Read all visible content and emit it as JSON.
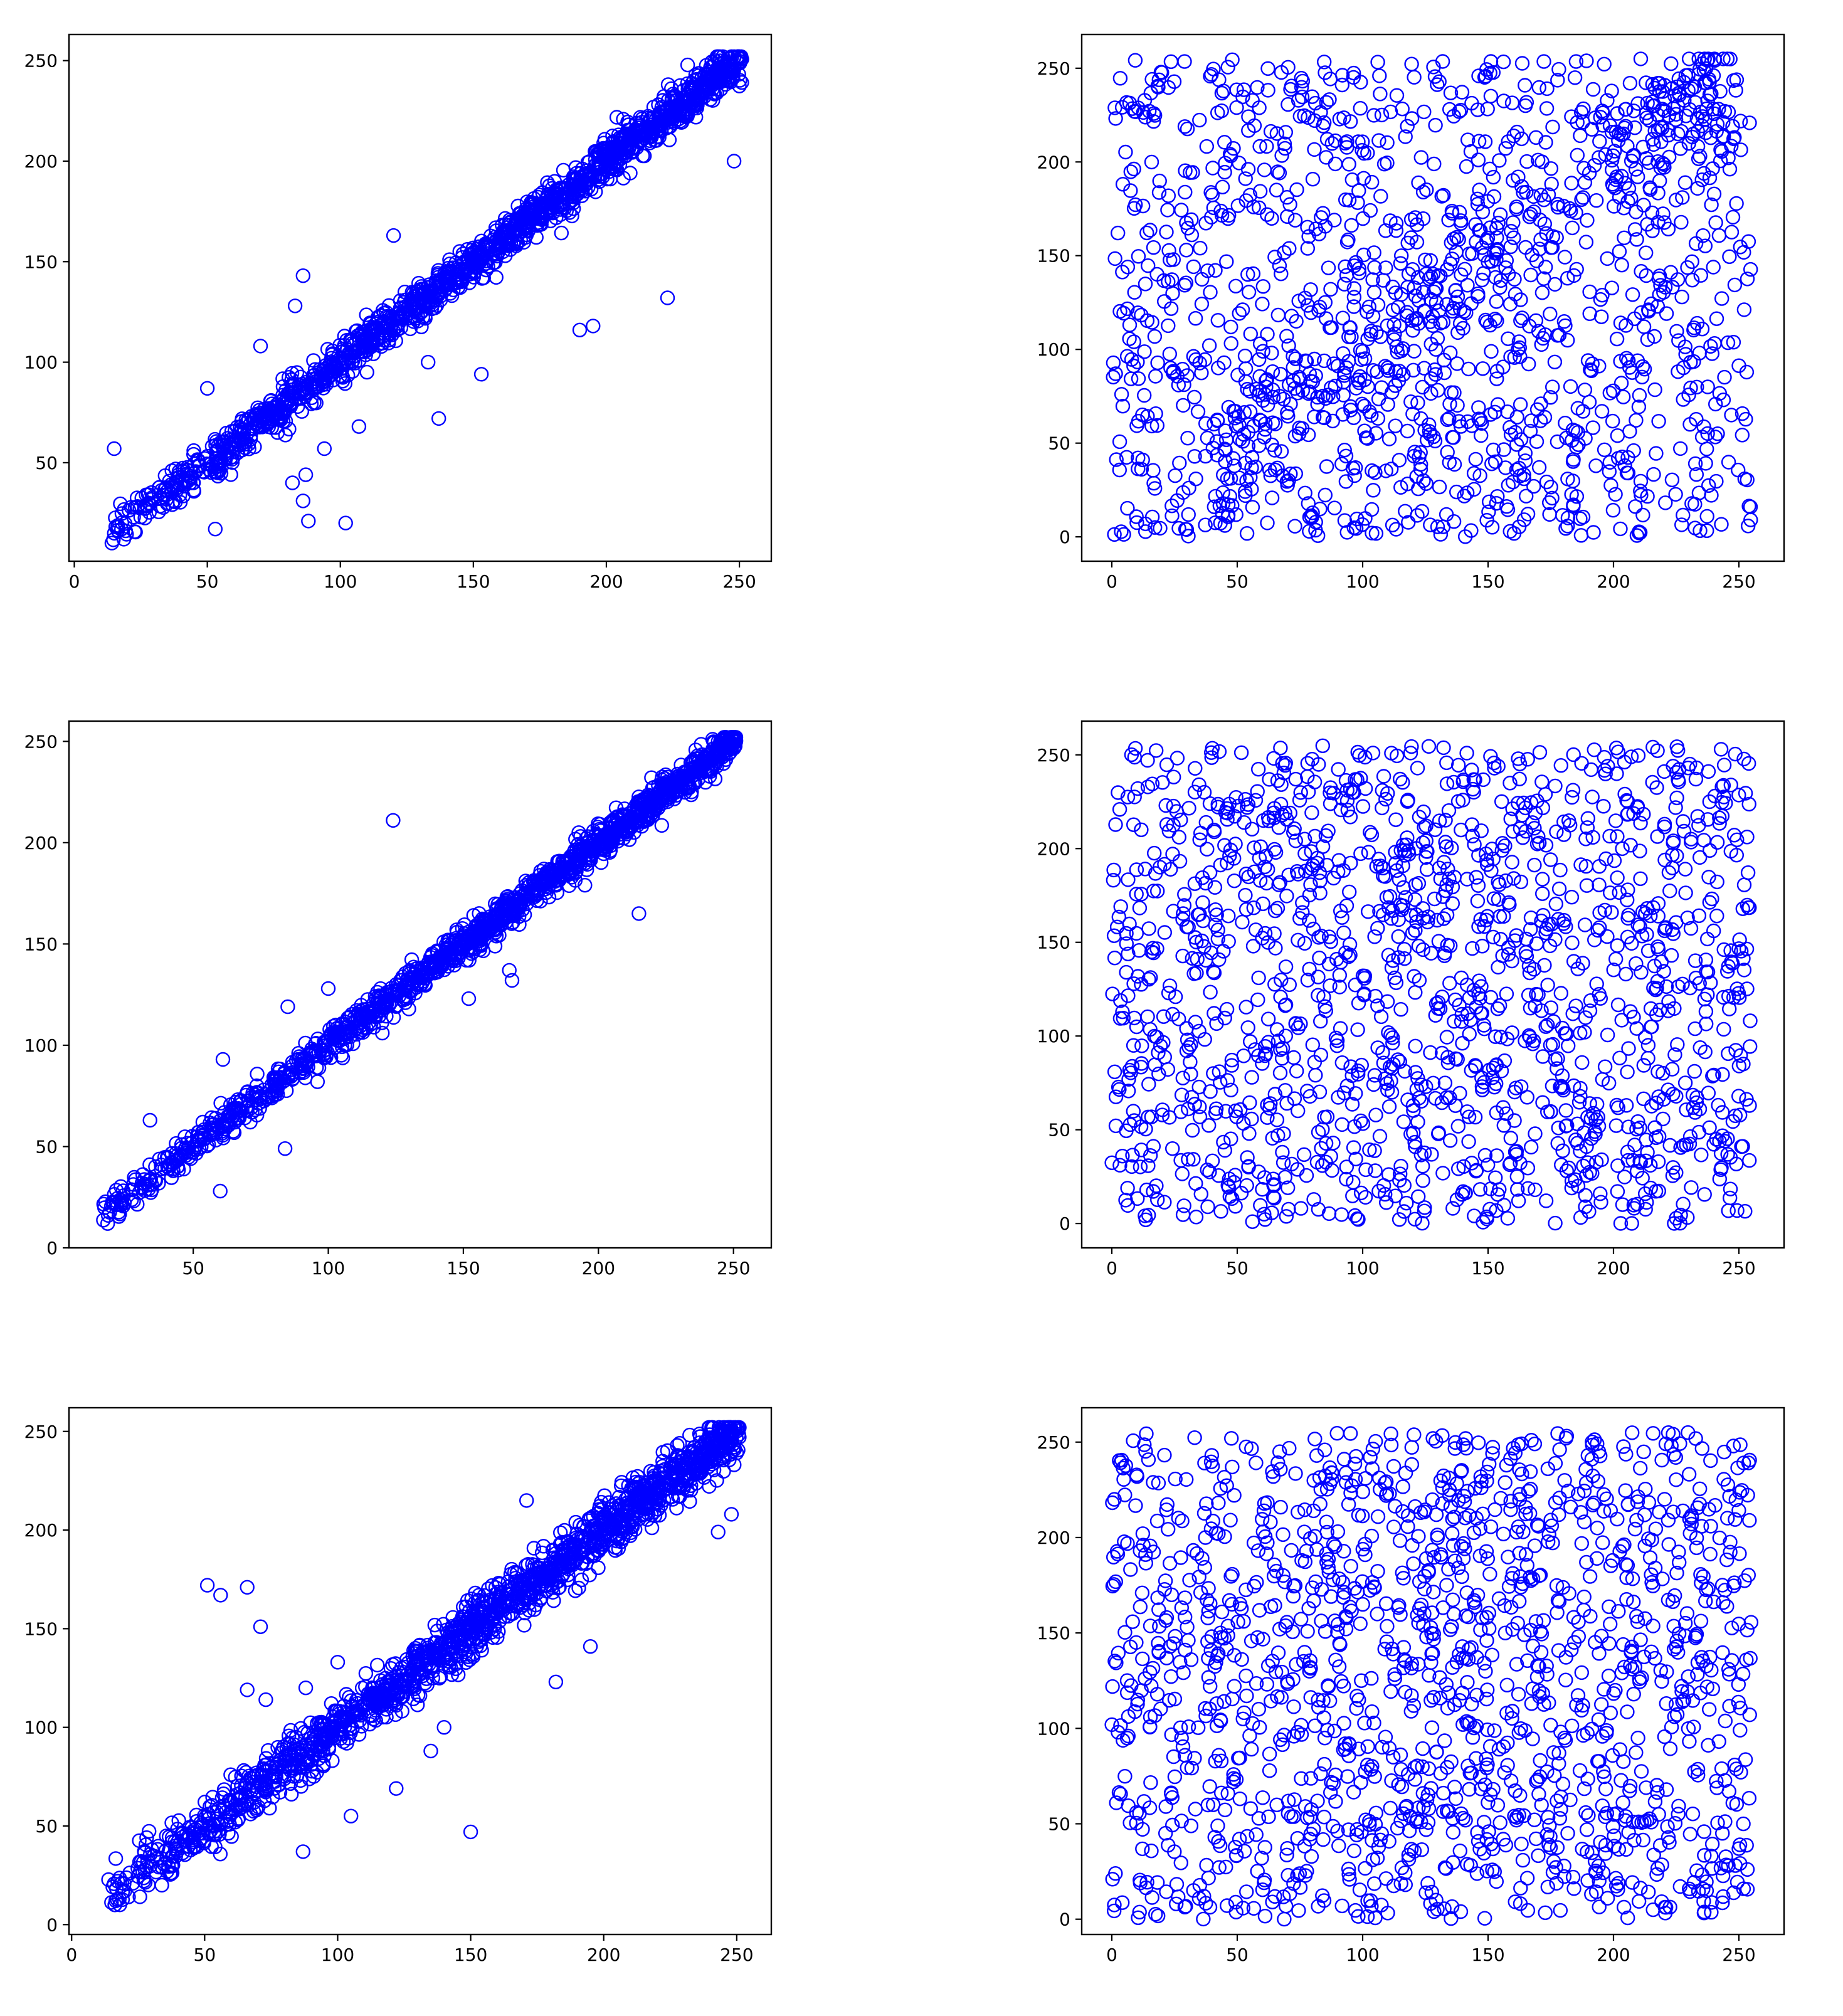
{
  "figure": {
    "layout": "3 rows x 2 columns grid of scatter plots",
    "marker": "hollow circle",
    "marker_color": "#0000ff",
    "background": "#ffffff"
  },
  "chart_data": [
    {
      "type": "scatter",
      "title": "",
      "xlabel": "",
      "ylabel": "",
      "xlim": [
        -2,
        262
      ],
      "ylim": [
        1,
        263
      ],
      "xticks": [
        0,
        50,
        100,
        150,
        200,
        250
      ],
      "yticks": [
        50,
        100,
        150,
        200,
        250
      ],
      "grid": false,
      "legend": "none",
      "series": [
        {
          "trend": "y ≈ x (strong positive correlation)",
          "x_range": [
            12,
            251
          ],
          "noise": 5,
          "n": 1500,
          "seed": 11,
          "points": [
            {
              "x": 15,
              "y": 57
            },
            {
              "x": 53,
              "y": 17
            },
            {
              "x": 86,
              "y": 143
            },
            {
              "x": 83,
              "y": 128
            },
            {
              "x": 94,
              "y": 57
            },
            {
              "x": 102,
              "y": 20
            },
            {
              "x": 88,
              "y": 21
            },
            {
              "x": 86,
              "y": 31
            },
            {
              "x": 82,
              "y": 40
            },
            {
              "x": 87,
              "y": 44
            },
            {
              "x": 107,
              "y": 68
            },
            {
              "x": 110,
              "y": 95
            },
            {
              "x": 133,
              "y": 100
            },
            {
              "x": 137,
              "y": 72
            },
            {
              "x": 120,
              "y": 163
            },
            {
              "x": 153,
              "y": 94
            },
            {
              "x": 190,
              "y": 116
            },
            {
              "x": 195,
              "y": 118
            },
            {
              "x": 223,
              "y": 132
            },
            {
              "x": 248,
              "y": 200
            },
            {
              "x": 230,
              "y": 222
            },
            {
              "x": 70,
              "y": 108
            },
            {
              "x": 50,
              "y": 87
            }
          ]
        }
      ]
    },
    {
      "type": "scatter",
      "title": "",
      "xlabel": "",
      "ylabel": "",
      "xlim": [
        -12,
        268
      ],
      "ylim": [
        -13,
        268
      ],
      "xticks": [
        0,
        50,
        100,
        150,
        200,
        250
      ],
      "yticks": [
        0,
        50,
        100,
        150,
        200,
        250
      ],
      "grid": false,
      "legend": "none",
      "series": [
        {
          "trend": "no correlation (uniform noise), faint diagonal band",
          "x_range": [
            0,
            255
          ],
          "n": 1500,
          "diagonal_fraction": 0.15,
          "seed": 23,
          "points": []
        }
      ]
    },
    {
      "type": "scatter",
      "title": "",
      "xlabel": "",
      "ylabel": "",
      "xlim": [
        4,
        264
      ],
      "ylim": [
        0,
        260
      ],
      "xticks": [
        50,
        100,
        150,
        200,
        250
      ],
      "yticks": [
        0,
        50,
        100,
        150,
        200,
        250
      ],
      "grid": false,
      "legend": "none",
      "series": [
        {
          "trend": "y ≈ x (strong positive correlation)",
          "x_range": [
            14,
            251
          ],
          "noise": 4,
          "n": 1400,
          "seed": 37,
          "points": [
            {
              "x": 124,
              "y": 211
            },
            {
              "x": 60,
              "y": 28
            },
            {
              "x": 84,
              "y": 49
            },
            {
              "x": 85,
              "y": 119
            },
            {
              "x": 167,
              "y": 137
            },
            {
              "x": 168,
              "y": 132
            },
            {
              "x": 152,
              "y": 123
            },
            {
              "x": 215,
              "y": 165
            },
            {
              "x": 195,
              "y": 179
            },
            {
              "x": 61,
              "y": 93
            },
            {
              "x": 96,
              "y": 82
            },
            {
              "x": 34,
              "y": 63
            },
            {
              "x": 100,
              "y": 128
            },
            {
              "x": 120,
              "y": 106
            }
          ]
        }
      ]
    },
    {
      "type": "scatter",
      "title": "",
      "xlabel": "",
      "ylabel": "",
      "xlim": [
        -12,
        268
      ],
      "ylim": [
        -13,
        268
      ],
      "xticks": [
        0,
        50,
        100,
        150,
        200,
        250
      ],
      "yticks": [
        0,
        50,
        100,
        150,
        200,
        250
      ],
      "grid": false,
      "legend": "none",
      "series": [
        {
          "trend": "no correlation (uniform noise)",
          "x_range": [
            0,
            255
          ],
          "n": 1500,
          "diagonal_fraction": 0,
          "seed": 41,
          "points": []
        }
      ]
    },
    {
      "type": "scatter",
      "title": "",
      "xlabel": "",
      "ylabel": "",
      "xlim": [
        -1,
        263
      ],
      "ylim": [
        -5,
        262
      ],
      "xticks": [
        0,
        50,
        100,
        150,
        200,
        250
      ],
      "yticks": [
        0,
        50,
        100,
        150,
        200,
        250
      ],
      "grid": false,
      "legend": "none",
      "series": [
        {
          "trend": "y ≈ x (positive correlation, wider spread)",
          "x_range": [
            12,
            251
          ],
          "noise": 7,
          "n": 1600,
          "seed": 53,
          "points": [
            {
              "x": 51,
              "y": 172
            },
            {
              "x": 56,
              "y": 167
            },
            {
              "x": 66,
              "y": 171
            },
            {
              "x": 71,
              "y": 151
            },
            {
              "x": 66,
              "y": 119
            },
            {
              "x": 73,
              "y": 114
            },
            {
              "x": 150,
              "y": 47
            },
            {
              "x": 105,
              "y": 55
            },
            {
              "x": 87,
              "y": 37
            },
            {
              "x": 140,
              "y": 100
            },
            {
              "x": 135,
              "y": 88
            },
            {
              "x": 122,
              "y": 69
            },
            {
              "x": 182,
              "y": 123
            },
            {
              "x": 195,
              "y": 141
            },
            {
              "x": 171,
              "y": 215
            },
            {
              "x": 248,
              "y": 208
            },
            {
              "x": 243,
              "y": 199
            },
            {
              "x": 88,
              "y": 120
            },
            {
              "x": 100,
              "y": 133
            }
          ]
        }
      ]
    },
    {
      "type": "scatter",
      "title": "",
      "xlabel": "",
      "ylabel": "",
      "xlim": [
        -12,
        268
      ],
      "ylim": [
        -8,
        268
      ],
      "xticks": [
        0,
        50,
        100,
        150,
        200,
        250
      ],
      "yticks": [
        0,
        50,
        100,
        150,
        200,
        250
      ],
      "grid": false,
      "legend": "none",
      "series": [
        {
          "trend": "no correlation (uniform noise)",
          "x_range": [
            0,
            255
          ],
          "n": 1500,
          "diagonal_fraction": 0,
          "seed": 67,
          "points": []
        }
      ]
    }
  ]
}
